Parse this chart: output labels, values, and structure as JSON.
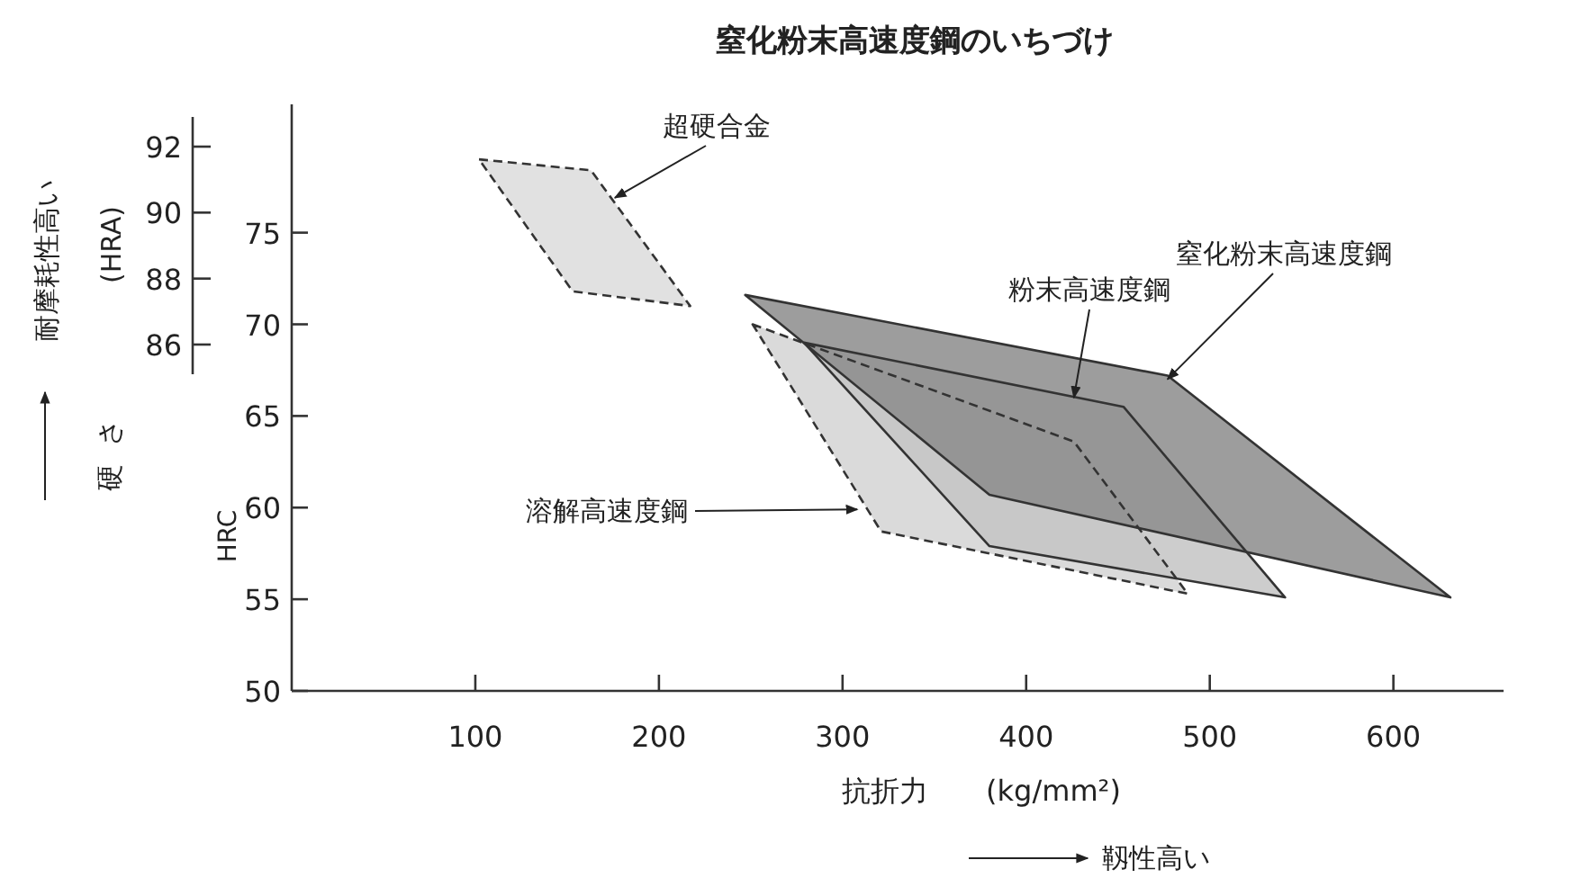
{
  "chart_data": {
    "type": "area",
    "title": "窒化粉末高速度鋼のいちづけ",
    "xlabel": "抗折力　　(kg/mm²)",
    "ylabel": "HRC",
    "y2label": "(HRA)",
    "xlim": [
      0,
      660
    ],
    "xticks": [
      100,
      200,
      300,
      400,
      500,
      600
    ],
    "ylim": [
      50,
      82
    ],
    "yticks": [
      50,
      55,
      60,
      65,
      70,
      75
    ],
    "y2lim": [
      85.1,
      92.9
    ],
    "y2ticks": [
      86,
      88,
      90,
      92
    ],
    "grid": false,
    "series": [
      {
        "color": "#dcdcdc",
        "line_style": "dashed",
        "x": [
          102,
          163,
          217,
          153
        ],
        "values": [
          79,
          78.4,
          71,
          71.8
        ]
      },
      {
        "color": "#d4d4d4",
        "line_style": "dashed",
        "x": [
          251,
          426,
          488,
          321
        ],
        "values": [
          70,
          63.6,
          55.3,
          58.7
        ]
      },
      {
        "color": "#c4c4c4",
        "line_style": "solid",
        "x": [
          279,
          453,
          541,
          380
        ],
        "values": [
          69,
          65.5,
          55.1,
          57.9
        ]
      },
      {
        "color": "#8c8c8c",
        "line_style": "solid",
        "x": [
          247,
          477,
          631,
          380
        ],
        "values": [
          71.6,
          67.2,
          55.1,
          60.7
        ]
      }
    ],
    "annotations": [
      {
        "text": "超硬合金",
        "x": 176,
        "y": 76.9
      },
      {
        "text": "溶解高速度鋼",
        "x": 308,
        "y": 59.9
      },
      {
        "text": "粉末高速度鋼",
        "x": 426,
        "y": 66
      },
      {
        "text": "窒化粉末高速度鋼",
        "x": 477,
        "y": 67
      },
      "硬さ",
      "耐摩耗性高い",
      "靱性高い"
    ]
  }
}
